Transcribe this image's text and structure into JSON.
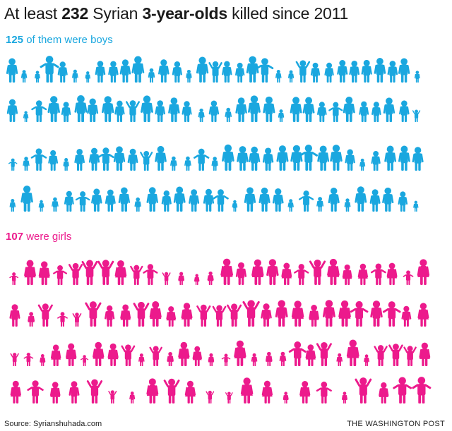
{
  "headline": {
    "prefix": "At least ",
    "total": "232",
    "middle": " Syrian ",
    "age": "3-year-olds",
    "suffix": " killed since 2011"
  },
  "boys_label": {
    "count": "125",
    "text": " of them were boys"
  },
  "girls_label": {
    "count": "107",
    "text": " were girls"
  },
  "footer": {
    "source": "Source: Syrianshuhada.com",
    "credit": "THE WASHINGTON POST"
  },
  "colors": {
    "boys": "#1aa7df",
    "girls": "#ec1a8c",
    "boys_label": "#1aa7df",
    "girls_label": "#ec1a8c"
  },
  "icons": {
    "boy": "child-silhouette-icon",
    "girl": "child-silhouette-icon"
  },
  "chart_data": {
    "type": "pictogram",
    "title": "At least 232 Syrian 3-year-olds killed since 2011",
    "total": 232,
    "categories": [
      "Boys",
      "Girls"
    ],
    "values": [
      125,
      107
    ],
    "series": [
      {
        "name": "boys",
        "value": 125,
        "label": "125 of them were boys"
      },
      {
        "name": "girls",
        "value": 107,
        "label": "107 were girls"
      }
    ]
  }
}
